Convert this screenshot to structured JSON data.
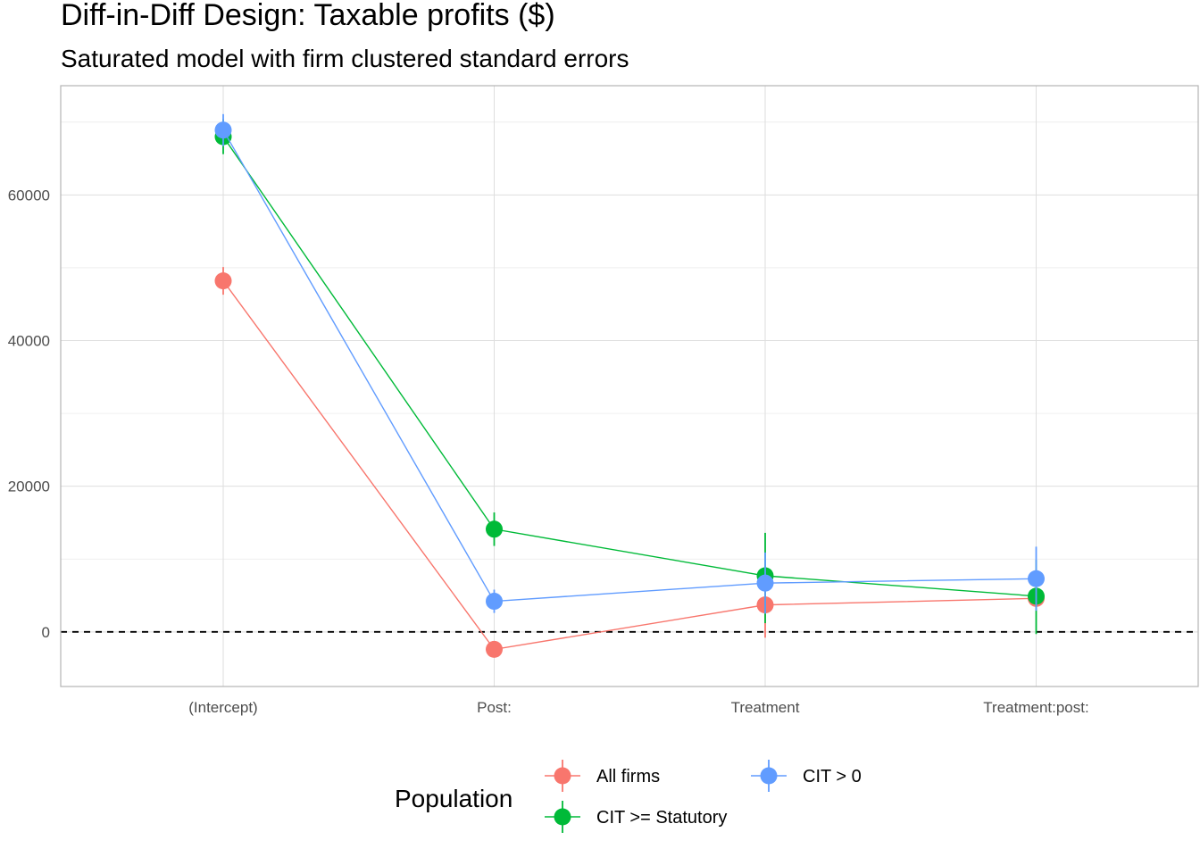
{
  "chart_data": {
    "type": "line",
    "title": "Diff-in-Diff Design: Taxable profits  ($)",
    "subtitle": "Saturated model with firm clustered standard errors",
    "xlabel": "",
    "ylabel": "",
    "categories": [
      "(Intercept)",
      "Post:",
      "Treatment",
      "Treatment:post:"
    ],
    "y_ticks": [
      0,
      20000,
      40000,
      60000
    ],
    "y_tick_labels": [
      "0",
      "20000",
      "40000",
      "60000"
    ],
    "ylim": [
      -7500,
      75000
    ],
    "grid": true,
    "reference_line": {
      "y": 0,
      "style": "dashed"
    },
    "legend": {
      "title": "Population",
      "position": "bottom"
    },
    "series": [
      {
        "name": "All firms",
        "color": "#F8766D",
        "values": [
          48200,
          -2400,
          3700,
          4600
        ],
        "lower": [
          46300,
          -2900,
          -800,
          3400
        ],
        "upper": [
          50100,
          -1900,
          7500,
          5800
        ]
      },
      {
        "name": "CIT >= Statutory",
        "color": "#00BA38",
        "values": [
          68000,
          14100,
          7700,
          4900
        ],
        "lower": [
          65600,
          11800,
          1200,
          -300
        ],
        "upper": [
          70400,
          16400,
          13600,
          9900
        ]
      },
      {
        "name": "CIT > 0",
        "color": "#619CFF",
        "values": [
          68900,
          4200,
          6700,
          7300
        ],
        "lower": [
          66700,
          2600,
          2500,
          2900
        ],
        "upper": [
          71100,
          5800,
          10900,
          11700
        ]
      }
    ]
  }
}
